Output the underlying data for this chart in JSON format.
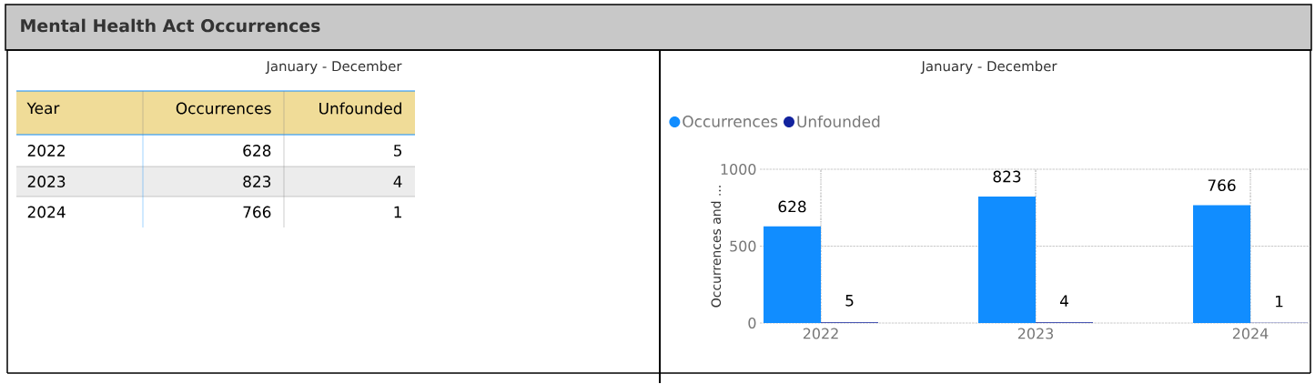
{
  "chart_data": [
    {
      "type": "other",
      "title": "Mental Health Act Occurrences",
      "subtitle": "January - December",
      "xlabel": "Year",
      "categories": [
        "2022",
        "2023",
        "2024"
      ],
      "data_labels": true,
      "series": [
        {
          "name": "Occurrences",
          "values": [
            628,
            823,
            766
          ]
        },
        {
          "name": "Unfounded",
          "values": [
            5,
            4,
            1
          ]
        }
      ]
    },
    {
      "type": "bar",
      "subtitle": "January - December",
      "ylabel": "Occurrences and ...",
      "categories": [
        "2022",
        "2023",
        "2024"
      ],
      "ylim": [
        0,
        1000
      ],
      "yticks": [
        0,
        500,
        1000
      ],
      "grid": true,
      "legend": "top left",
      "data_labels": true,
      "series": [
        {
          "name": "Occurrences",
          "color": "#118dff",
          "values": [
            628,
            823,
            766
          ]
        },
        {
          "name": "Unfounded",
          "color": "#12239e",
          "values": [
            5,
            4,
            1
          ]
        }
      ]
    }
  ]
}
